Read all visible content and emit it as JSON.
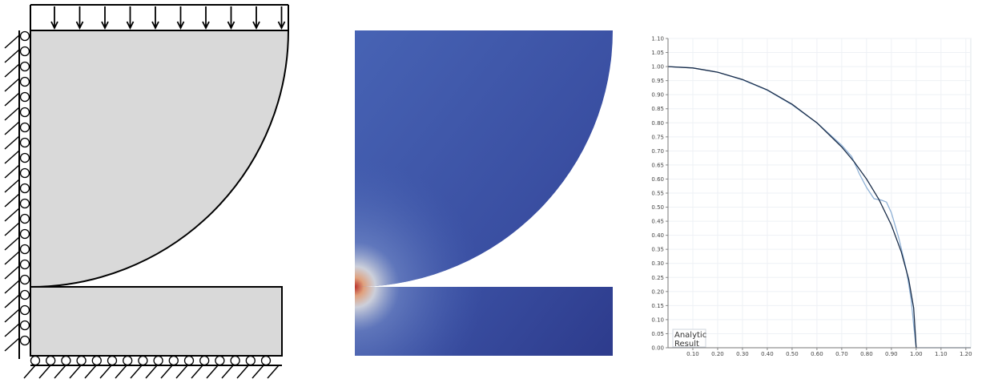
{
  "figure": {
    "colors": {
      "solid_fill": "#d9d9d9",
      "outline": "#000000",
      "field_low": "#2d3b8c",
      "field_mid": "#3d57a8",
      "field_high": "#b8302a",
      "analytic_curve": "#1b2e4a",
      "result_curve": "#8fb1d6",
      "grid": "#e9eef4"
    },
    "icons": {
      "top_load": "down-arrow-icon",
      "left_support": "roller-icon",
      "bottom_support": "roller-icon"
    }
  },
  "chart_data": {
    "type": "line",
    "x_ticks": [
      "0.10",
      "0.20",
      "0.30",
      "0.40",
      "0.50",
      "0.60",
      "0.70",
      "0.80",
      "0.90",
      "1.00",
      "1.10",
      "1.20"
    ],
    "y_ticks": [
      "0.00",
      "0.05",
      "0.10",
      "0.15",
      "0.20",
      "0.25",
      "0.30",
      "0.35",
      "0.40",
      "0.45",
      "0.50",
      "0.55",
      "0.60",
      "0.65",
      "0.70",
      "0.75",
      "0.80",
      "0.85",
      "0.90",
      "0.95",
      "1.00",
      "1.05",
      "1.10"
    ],
    "xlim": [
      0,
      1.22
    ],
    "ylim": [
      0,
      1.1
    ],
    "grid": true,
    "legend_placement": "bottom-left",
    "series": [
      {
        "name": "Analytic",
        "points": [
          [
            0,
            1.0
          ],
          [
            0.1,
            0.995
          ],
          [
            0.2,
            0.98
          ],
          [
            0.3,
            0.954
          ],
          [
            0.4,
            0.917
          ],
          [
            0.5,
            0.866
          ],
          [
            0.6,
            0.8
          ],
          [
            0.7,
            0.714
          ],
          [
            0.75,
            0.661
          ],
          [
            0.8,
            0.6
          ],
          [
            0.85,
            0.527
          ],
          [
            0.9,
            0.436
          ],
          [
            0.94,
            0.341
          ],
          [
            0.97,
            0.243
          ],
          [
            0.99,
            0.141
          ],
          [
            1.0,
            0.0
          ]
        ]
      },
      {
        "name": "Result",
        "points": [
          [
            0,
            1.0
          ],
          [
            0.1,
            0.995
          ],
          [
            0.2,
            0.98
          ],
          [
            0.3,
            0.953
          ],
          [
            0.4,
            0.916
          ],
          [
            0.5,
            0.864
          ],
          [
            0.6,
            0.8
          ],
          [
            0.7,
            0.72
          ],
          [
            0.74,
            0.68
          ],
          [
            0.77,
            0.62
          ],
          [
            0.8,
            0.57
          ],
          [
            0.83,
            0.53
          ],
          [
            0.86,
            0.525
          ],
          [
            0.88,
            0.518
          ],
          [
            0.9,
            0.48
          ],
          [
            0.93,
            0.39
          ],
          [
            0.96,
            0.28
          ],
          [
            0.98,
            0.17
          ],
          [
            0.99,
            0.08
          ],
          [
            1.0,
            0.0
          ],
          [
            1.22,
            0.0
          ]
        ]
      }
    ]
  }
}
